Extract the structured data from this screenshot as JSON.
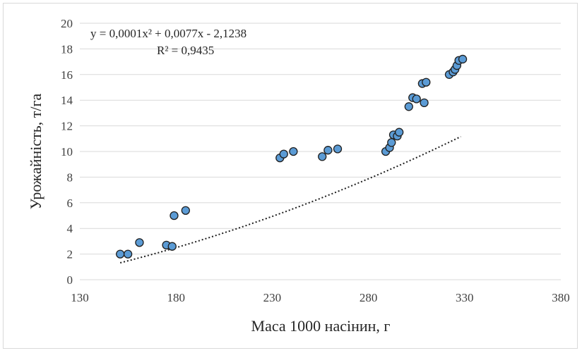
{
  "chart_data": {
    "type": "scatter",
    "xlabel": "Маса 1000 насінин, г",
    "ylabel": "Урожайність, т/га",
    "xlim": [
      130,
      380
    ],
    "ylim": [
      0,
      20
    ],
    "x_ticks": [
      "130",
      "180",
      "230",
      "280",
      "330",
      "380"
    ],
    "y_ticks": [
      "0",
      "2",
      "4",
      "6",
      "8",
      "10",
      "12",
      "14",
      "16",
      "18",
      "20"
    ],
    "grid": "horizontal",
    "marker_color": "#5b9bd5",
    "marker_edge_color": "#1f1f1f",
    "trendline": {
      "type": "polynomial",
      "coefficients": [
        0.0001,
        0.0077,
        -2.1238
      ],
      "x_range": [
        151,
        328
      ],
      "equation_label": "y = 0,0001x² + 0,0077x - 2,1238",
      "r2_label": "R² = 0,9435"
    },
    "points": [
      {
        "x": 151,
        "y": 2.0
      },
      {
        "x": 155,
        "y": 2.0
      },
      {
        "x": 161,
        "y": 2.9
      },
      {
        "x": 175,
        "y": 2.7
      },
      {
        "x": 178,
        "y": 2.6
      },
      {
        "x": 179,
        "y": 5.0
      },
      {
        "x": 185,
        "y": 5.4
      },
      {
        "x": 234,
        "y": 9.5
      },
      {
        "x": 236,
        "y": 9.8
      },
      {
        "x": 241,
        "y": 10.0
      },
      {
        "x": 256,
        "y": 9.6
      },
      {
        "x": 259,
        "y": 10.1
      },
      {
        "x": 264,
        "y": 10.2
      },
      {
        "x": 289,
        "y": 10.0
      },
      {
        "x": 291,
        "y": 10.3
      },
      {
        "x": 292,
        "y": 10.7
      },
      {
        "x": 293,
        "y": 11.3
      },
      {
        "x": 295,
        "y": 11.2
      },
      {
        "x": 296,
        "y": 11.5
      },
      {
        "x": 301,
        "y": 13.5
      },
      {
        "x": 303,
        "y": 14.2
      },
      {
        "x": 305,
        "y": 14.1
      },
      {
        "x": 308,
        "y": 15.3
      },
      {
        "x": 309,
        "y": 13.8
      },
      {
        "x": 310,
        "y": 15.4
      },
      {
        "x": 322,
        "y": 16.0
      },
      {
        "x": 324,
        "y": 16.2
      },
      {
        "x": 325,
        "y": 16.4
      },
      {
        "x": 326,
        "y": 16.7
      },
      {
        "x": 327,
        "y": 17.1
      },
      {
        "x": 329,
        "y": 17.2
      }
    ]
  }
}
